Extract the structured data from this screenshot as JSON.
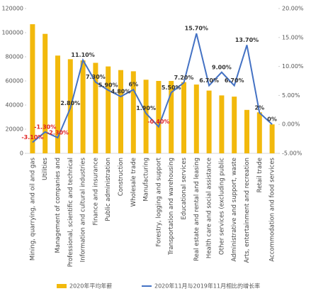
{
  "chart_data": {
    "type": "bar-line",
    "categories": [
      "Mining, quarrying, and oil and gas",
      "Utilities",
      "Management of companies and",
      "Professional, scientific and technical",
      "Information and cultural industries",
      "Finance and insurance",
      "Public administration",
      "Construction",
      "Wholesale trade",
      "Manufacturing",
      "Forestry, logging and support",
      "Transportation and warehousing",
      "Educational services",
      "Real estate and rental and leasing",
      "Health care and social assistance",
      "Other services (excluding public",
      "Administrative and support, waste",
      "Arts, entertainment and recreation",
      "Retail trade",
      "Accommodation and food services"
    ],
    "series": [
      {
        "name": "2020年平均年薪",
        "color": "#f2b90c",
        "kind": "bar",
        "values": [
          107000,
          99000,
          81000,
          78000,
          77000,
          75000,
          72000,
          69000,
          68000,
          61000,
          60000,
          60000,
          59000,
          57000,
          52000,
          48000,
          47000,
          36000,
          34000,
          24000
        ]
      },
      {
        "name": "2020年11月与2019年11月相比的增长率",
        "color": "#4472c4",
        "kind": "line",
        "axis": "y2",
        "values": [
          -3.1,
          -1.3,
          -2.3,
          2.8,
          11.1,
          7.3,
          5.9,
          4.8,
          6,
          1.9,
          -0.4,
          5.5,
          7.2,
          15.7,
          6.7,
          9,
          6.7,
          13.7,
          2,
          0
        ],
        "value_labels": [
          "-3.10%",
          "-1.30%",
          "-2.30%",
          "2.80%",
          "11.10%",
          "7.30%",
          "5.90%",
          "4.80%",
          "6%",
          "1.90%",
          "-0.40%",
          "5.50%",
          "7.20%",
          "15.70%",
          "6.70%",
          "9.00%",
          "6.70%",
          "13.70%",
          "2%",
          "0%"
        ]
      }
    ],
    "ylim": [
      0,
      120000
    ],
    "yticks": [
      0,
      20000,
      40000,
      60000,
      80000,
      100000,
      120000
    ],
    "y2lim": [
      -5,
      20
    ],
    "y2ticks": [
      {
        "value": -5,
        "label": "-5.00%"
      },
      {
        "value": 0,
        "label": "0.00%"
      },
      {
        "value": 5,
        "label": "5.00%"
      },
      {
        "value": 10,
        "label": "10.00%"
      },
      {
        "value": 15,
        "label": "15.00%"
      },
      {
        "value": 20,
        "label": "20.00%"
      }
    ],
    "negative_label_color": "#e02020",
    "label_color": "#333333",
    "legend": "bottom"
  }
}
